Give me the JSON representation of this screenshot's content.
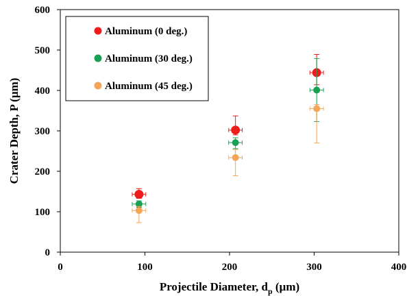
{
  "chart_data": {
    "type": "scatter",
    "xlabel": "Projectile Diameter, d",
    "xlabel_sub": "p",
    "xlabel_unit": " (µm)",
    "ylabel": "Crater Depth, P (µm)",
    "xlim": [
      0,
      400
    ],
    "ylim": [
      0,
      600
    ],
    "xticks": [
      0,
      100,
      200,
      300,
      400
    ],
    "yticks": [
      0,
      100,
      200,
      300,
      400,
      500,
      600
    ],
    "grid": false,
    "legend_position": "top-left",
    "series": [
      {
        "name": "Aluminum (0 deg.)",
        "color": "#ee1c1c",
        "size": "large",
        "points": [
          {
            "x": 93,
            "y": 143,
            "yerr_low": 10,
            "yerr_high": 14,
            "xerr": 8
          },
          {
            "x": 207,
            "y": 302,
            "yerr_low": 12,
            "yerr_high": 35,
            "xerr": 8
          },
          {
            "x": 303,
            "y": 444,
            "yerr_low": 30,
            "yerr_high": 45,
            "xerr": 8
          }
        ]
      },
      {
        "name": "Aluminum (30 deg.)",
        "color": "#1aa055",
        "size": "small",
        "points": [
          {
            "x": 93,
            "y": 119,
            "yerr_low": 8,
            "yerr_high": 8,
            "xerr": 8
          },
          {
            "x": 207,
            "y": 271,
            "yerr_low": 15,
            "yerr_high": 12,
            "xerr": 8
          },
          {
            "x": 303,
            "y": 401,
            "yerr_low": 78,
            "yerr_high": 78,
            "xerr": 8
          }
        ]
      },
      {
        "name": "Aluminum (45 deg.)",
        "color": "#f3a558",
        "size": "small",
        "points": [
          {
            "x": 93,
            "y": 103,
            "yerr_low": 30,
            "yerr_high": 10,
            "xerr": 8
          },
          {
            "x": 207,
            "y": 234,
            "yerr_low": 45,
            "yerr_high": 20,
            "xerr": 8
          },
          {
            "x": 303,
            "y": 355,
            "yerr_low": 85,
            "yerr_high": 10,
            "xerr": 8
          }
        ]
      }
    ]
  }
}
